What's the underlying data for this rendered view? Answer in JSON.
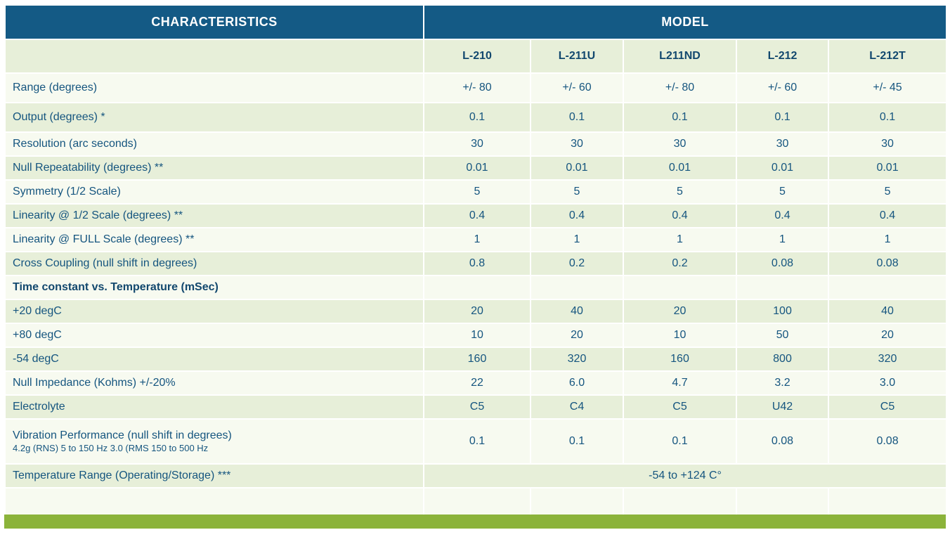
{
  "header": {
    "characteristics": "CHARACTERISTICS",
    "model": "MODEL"
  },
  "models": [
    "L-210",
    "L-211U",
    "L211ND",
    "L-212",
    "L-212T"
  ],
  "rows": [
    {
      "label": "Range (degrees)",
      "values": [
        "+/- 80",
        "+/- 60",
        "+/- 80",
        "+/- 60",
        "+/- 45"
      ]
    },
    {
      "label": "Output (degrees) *",
      "values": [
        "0.1",
        "0.1",
        "0.1",
        "0.1",
        "0.1"
      ]
    },
    {
      "label": "Resolution (arc seconds)",
      "values": [
        "30",
        "30",
        "30",
        "30",
        "30"
      ]
    },
    {
      "label": "Null Repeatability (degrees) **",
      "values": [
        "0.01",
        "0.01",
        "0.01",
        "0.01",
        "0.01"
      ]
    },
    {
      "label": "Symmetry (1/2 Scale)",
      "values": [
        "5",
        "5",
        "5",
        "5",
        "5"
      ]
    },
    {
      "label": "Linearity @ 1/2 Scale (degrees) **",
      "values": [
        "0.4",
        "0.4",
        "0.4",
        "0.4",
        "0.4"
      ]
    },
    {
      "label": "Linearity @ FULL Scale  (degrees) **",
      "values": [
        "1",
        "1",
        "1",
        "1",
        "1"
      ]
    },
    {
      "label": "Cross Coupling (null shift in degrees)",
      "values": [
        "0.8",
        "0.2",
        "0.2",
        "0.08",
        "0.08"
      ]
    },
    {
      "label": "Time constant vs. Temperature (mSec)",
      "values": [
        "",
        "",
        "",
        "",
        ""
      ]
    },
    {
      "label": "+20 degC",
      "values": [
        "20",
        "40",
        "20",
        "100",
        "40"
      ]
    },
    {
      "label": "+80 degC",
      "values": [
        "10",
        "20",
        "10",
        "50",
        "20"
      ]
    },
    {
      "label": "-54 degC",
      "values": [
        "160",
        "320",
        "160",
        "800",
        "320"
      ]
    },
    {
      "label": "Null Impedance (Kohms) +/-20%",
      "values": [
        "22",
        "6.0",
        "4.7",
        "3.2",
        "3.0"
      ]
    },
    {
      "label": "Electrolyte",
      "values": [
        "C5",
        "C4",
        "C5",
        "U42",
        "C5"
      ]
    },
    {
      "label": "Vibration Performance (null shift in degrees)",
      "sublabel": "4.2g (RNS) 5 to 150 Hz 3.0 (RMS 150 to 500 Hz",
      "values": [
        "0.1",
        "0.1",
        "0.1",
        "0.08",
        "0.08"
      ]
    },
    {
      "label": "Temperature Range (Operating/Storage) ***",
      "span_value": "-54 to +124 C°"
    }
  ]
}
